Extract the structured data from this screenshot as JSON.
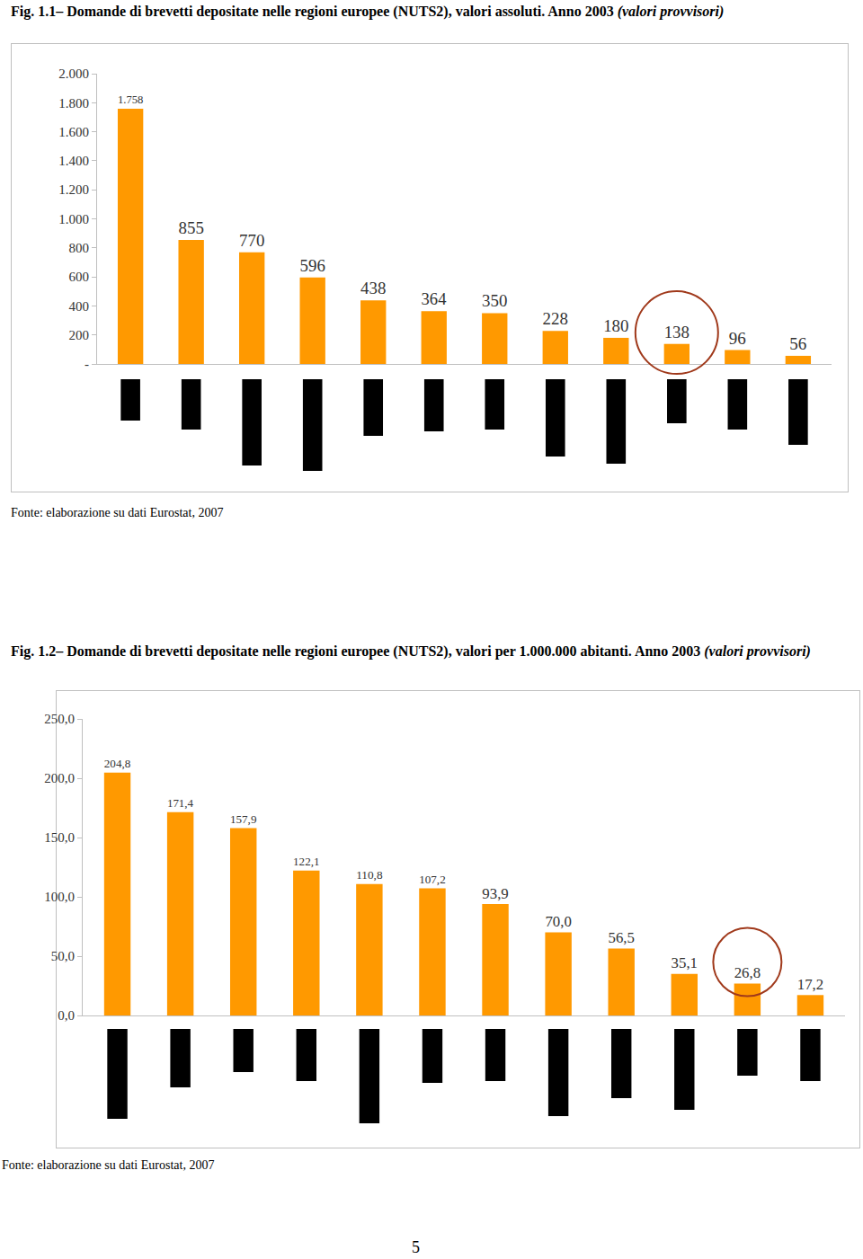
{
  "chart_data": [
    {
      "type": "bar",
      "title": "Fig. 1.1– Domande di brevetti depositate nelle regioni europee (NUTS2), valori assoluti. Anno 2003",
      "subtitle": "(valori provvisori)",
      "source": "Fonte: elaborazione su dati Eurostat, 2007",
      "categories": [
        null,
        null,
        null,
        null,
        null,
        null,
        null,
        null,
        null,
        null,
        null,
        null
      ],
      "values": [
        1758,
        855,
        770,
        596,
        438,
        364,
        350,
        228,
        180,
        138,
        96,
        56
      ],
      "value_labels": [
        "1.758",
        "855",
        "770",
        "596",
        "438",
        "364",
        "350",
        "228",
        "180",
        "138",
        "96",
        "56"
      ],
      "color": "#ff9900",
      "ylim": [
        0,
        2000
      ],
      "yticks": [
        {
          "value": 0,
          "label": "-"
        },
        200,
        400,
        600,
        800,
        {
          "value": 1000,
          "label": "1.000"
        },
        {
          "value": 1200,
          "label": "1.200"
        },
        {
          "value": 1400,
          "label": "1.400"
        },
        {
          "value": 1600,
          "label": "1.600"
        },
        {
          "value": 1800,
          "label": "1.800"
        },
        {
          "value": 2000,
          "label": "2.000"
        }
      ],
      "data_labels": true,
      "grid": false,
      "tick_labels": "y"
    },
    {
      "type": "bar",
      "title": "Fig. 1.2– Domande di brevetti depositate nelle regioni europee (NUTS2), valori per 1.000.000 abitanti. Anno 2003",
      "subtitle": "(valori provvisori)",
      "source": "Fonte: elaborazione su dati Eurostat, 2007",
      "categories": [
        null,
        null,
        null,
        null,
        null,
        null,
        null,
        null,
        null,
        null,
        null,
        null
      ],
      "values": [
        204.8,
        171.4,
        157.9,
        122.1,
        110.8,
        107.2,
        93.9,
        70.0,
        56.5,
        35.1,
        26.8,
        17.2
      ],
      "value_labels": [
        "204,8",
        "171,4",
        "157,9",
        "122,1",
        "110,8",
        "107,2",
        "93,9",
        "70,0",
        "56,5",
        "35,1",
        "26,8",
        "17,2"
      ],
      "color": "#ff9900",
      "ylim": [
        0,
        250
      ],
      "yticks": [
        {
          "value": 0,
          "label": "0,0"
        },
        {
          "value": 50,
          "label": "50,0"
        },
        {
          "value": 100,
          "label": "100,0"
        },
        {
          "value": 150,
          "label": "150,0"
        },
        {
          "value": 200,
          "label": "200,0"
        },
        {
          "value": 250,
          "label": "250,0"
        }
      ],
      "data_labels": true,
      "grid": false,
      "tick_labels": "y"
    }
  ],
  "page_number": 5
}
